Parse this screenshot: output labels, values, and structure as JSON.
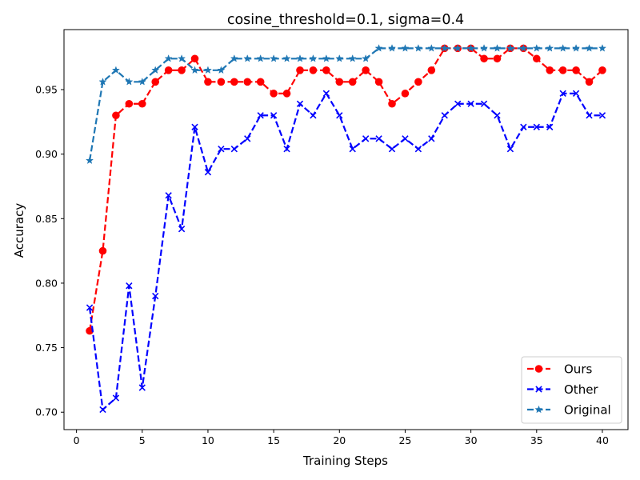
{
  "chart_data": {
    "type": "line",
    "title": "cosine_threshold=0.1, sigma=0.4",
    "xlabel": "Training Steps",
    "ylabel": "Accuracy",
    "xlim": [
      -0.95,
      41.95
    ],
    "ylim": [
      0.6865,
      0.9965
    ],
    "xticks": [
      0,
      5,
      10,
      15,
      20,
      25,
      30,
      35,
      40
    ],
    "yticks": [
      0.7,
      0.75,
      0.8,
      0.85,
      0.9,
      0.95
    ],
    "grid": false,
    "legend_position": "lower-right",
    "x": [
      1,
      2,
      3,
      4,
      5,
      6,
      7,
      8,
      9,
      10,
      11,
      12,
      13,
      14,
      15,
      16,
      17,
      18,
      19,
      20,
      21,
      22,
      23,
      24,
      25,
      26,
      27,
      28,
      29,
      30,
      31,
      32,
      33,
      34,
      35,
      36,
      37,
      38,
      39,
      40
    ],
    "series": [
      {
        "name": "Ours",
        "color": "#ff0000",
        "marker": "circle",
        "values": [
          0.763,
          0.825,
          0.93,
          0.939,
          0.939,
          0.956,
          0.965,
          0.965,
          0.974,
          0.956,
          0.956,
          0.956,
          0.956,
          0.956,
          0.947,
          0.947,
          0.965,
          0.965,
          0.965,
          0.956,
          0.956,
          0.965,
          0.956,
          0.939,
          0.947,
          0.956,
          0.965,
          0.982,
          0.982,
          0.982,
          0.974,
          0.974,
          0.982,
          0.982,
          0.974,
          0.965,
          0.965,
          0.965,
          0.956,
          0.965
        ]
      },
      {
        "name": "Other",
        "color": "#0000ff",
        "marker": "x",
        "values": [
          0.781,
          0.702,
          0.711,
          0.798,
          0.719,
          0.79,
          0.868,
          0.842,
          0.921,
          0.886,
          0.904,
          0.904,
          0.912,
          0.93,
          0.93,
          0.904,
          0.939,
          0.93,
          0.947,
          0.93,
          0.904,
          0.912,
          0.912,
          0.904,
          0.912,
          0.904,
          0.912,
          0.93,
          0.939,
          0.939,
          0.939,
          0.93,
          0.904,
          0.921,
          0.921,
          0.921,
          0.947,
          0.947,
          0.93,
          0.93
        ]
      },
      {
        "name": "Original",
        "color": "#1f77b4",
        "marker": "star",
        "values": [
          0.895,
          0.956,
          0.965,
          0.956,
          0.956,
          0.965,
          0.974,
          0.974,
          0.965,
          0.965,
          0.965,
          0.974,
          0.974,
          0.974,
          0.974,
          0.974,
          0.974,
          0.974,
          0.974,
          0.974,
          0.974,
          0.974,
          0.982,
          0.982,
          0.982,
          0.982,
          0.982,
          0.982,
          0.982,
          0.982,
          0.982,
          0.982,
          0.982,
          0.982,
          0.982,
          0.982,
          0.982,
          0.982,
          0.982,
          0.982
        ]
      }
    ]
  }
}
